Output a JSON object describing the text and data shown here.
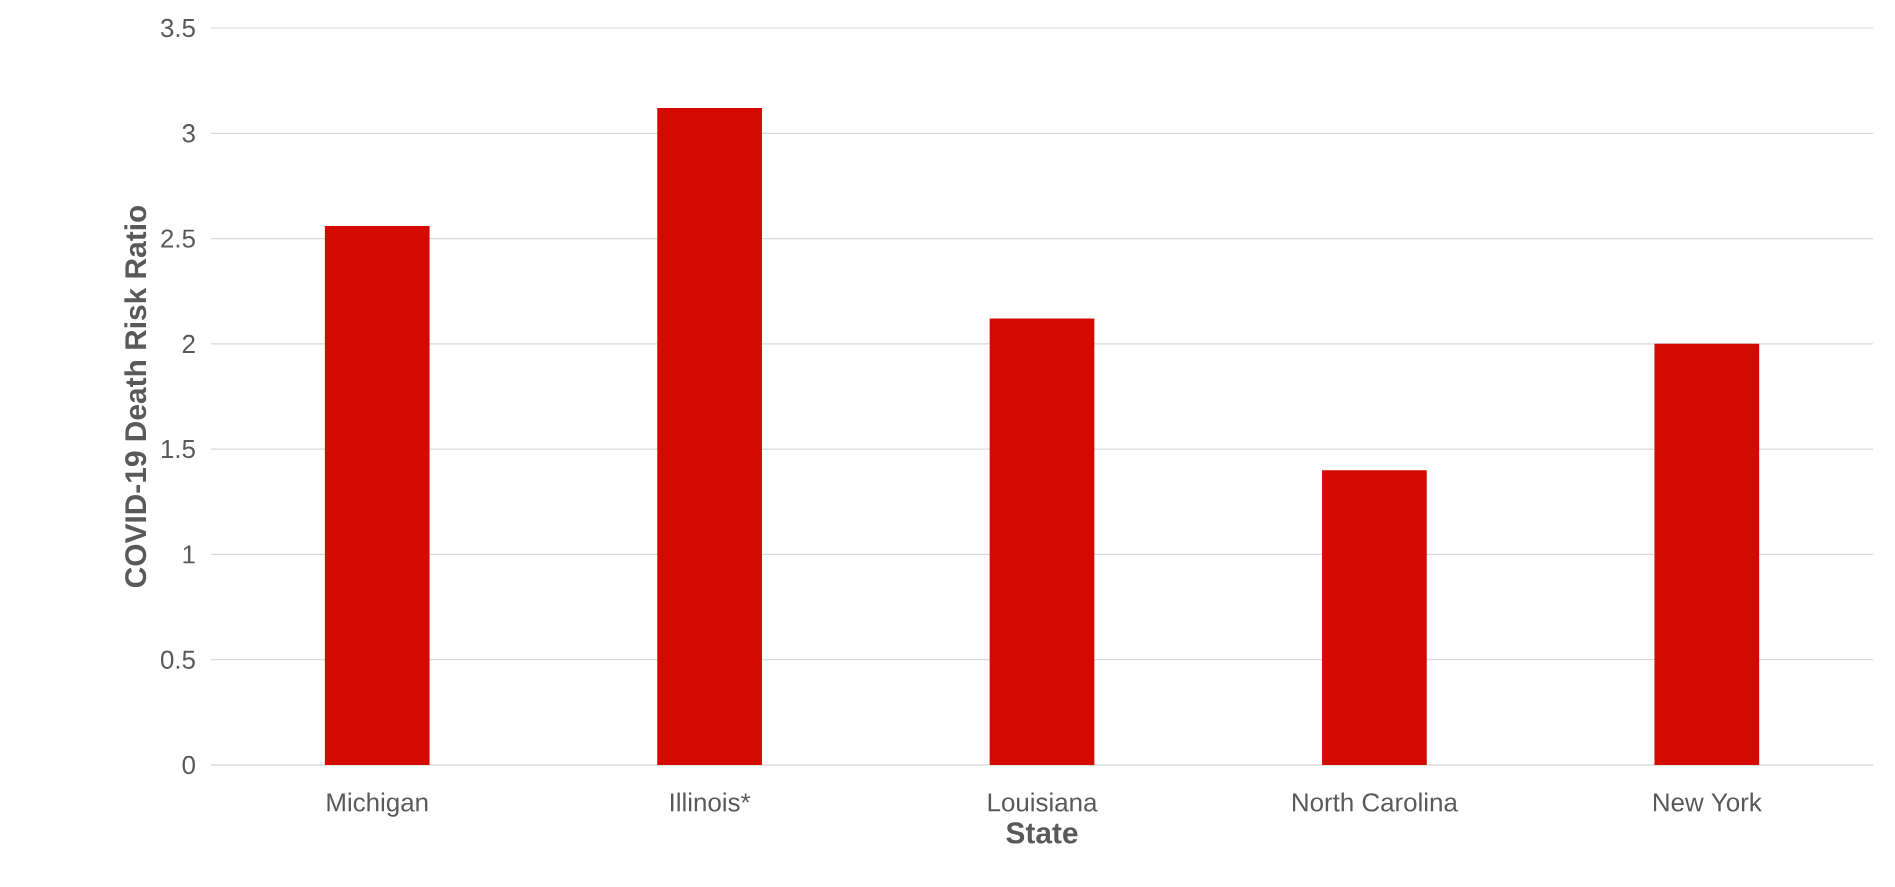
{
  "chart_data": {
    "type": "bar",
    "xlabel": "State",
    "ylabel": "COVID-19 Death Risk Ratio",
    "categories": [
      "Michigan",
      "Illinois*",
      "Louisiana",
      "North Carolina",
      "New York"
    ],
    "values": [
      2.56,
      3.12,
      2.12,
      1.4,
      2.0
    ],
    "color": "#d40a00",
    "ylim": [
      0,
      3.5
    ],
    "yticks": [
      0,
      0.5,
      1,
      1.5,
      2,
      2.5,
      3,
      3.5
    ],
    "grid": "y"
  }
}
